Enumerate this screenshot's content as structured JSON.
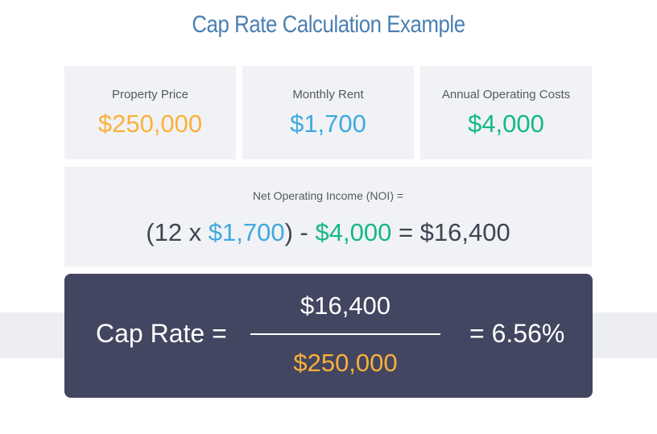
{
  "title": "Cap Rate Calculation Example",
  "colors": {
    "title": "#4a7fb3",
    "price": "#fbb03b",
    "rent": "#3fa9e0",
    "costs": "#14b88a",
    "dark_box": "#424660"
  },
  "cards": [
    {
      "label": "Property Price",
      "value": "$250,000"
    },
    {
      "label": "Monthly Rent",
      "value": "$1,700"
    },
    {
      "label": "Annual Operating Costs",
      "value": "$4,000"
    }
  ],
  "noi": {
    "label": "Net Operating Income (NOI) =",
    "open": "(12 x ",
    "rent": "$1,700",
    "minus": ") - ",
    "costs": "$4,000",
    "equals": " = $16,400"
  },
  "cap_rate": {
    "label": "Cap Rate =",
    "numerator": "$16,400",
    "denominator": "$250,000",
    "result": "= 6.56%"
  }
}
